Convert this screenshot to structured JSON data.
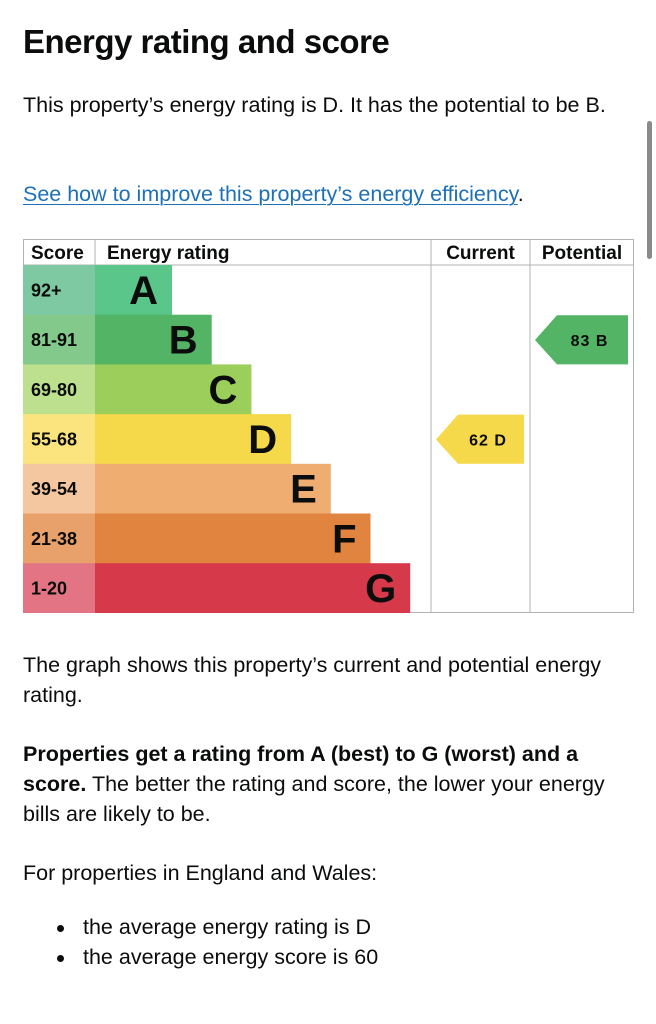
{
  "page": {
    "title": "Energy rating and score",
    "intro": "This property’s energy rating is D. It has the potential to be B.",
    "link_text": "See how to improve this property’s energy efficiency",
    "link_suffix": ".",
    "graph_description": "The graph shows this property’s current and potential energy rating.",
    "rating_range_bold": "Properties get a rating from A (best) to G (worst) and a score.",
    "rating_range_rest": " The better the rating and score, the lower your energy bills are likely to be.",
    "regional_intro": "For properties in England and Wales:",
    "averages": [
      "the average energy rating is D",
      "the average energy score is 60"
    ]
  },
  "chart_data": {
    "type": "bar",
    "headers": {
      "score": "Score",
      "rating": "Energy rating",
      "current": "Current",
      "potential": "Potential"
    },
    "bands": [
      {
        "letter": "A",
        "score": "92+",
        "color": "#5bc689",
        "score_bg": "#7ec9a2"
      },
      {
        "letter": "B",
        "score": "81-91",
        "color": "#54b465",
        "score_bg": "#83c98b"
      },
      {
        "letter": "C",
        "score": "69-80",
        "color": "#9bce5a",
        "score_bg": "#bde08f"
      },
      {
        "letter": "D",
        "score": "55-68",
        "color": "#f6d84b",
        "score_bg": "#fbe47d"
      },
      {
        "letter": "E",
        "score": "39-54",
        "color": "#efad72",
        "score_bg": "#f5c7a0"
      },
      {
        "letter": "F",
        "score": "21-38",
        "color": "#e0843f",
        "score_bg": "#e9a16b"
      },
      {
        "letter": "G",
        "score": "1-20",
        "color": "#d6394a",
        "score_bg": "#e27483"
      }
    ],
    "current": {
      "score": 62,
      "band": "D",
      "label": "62 D",
      "color": "#f6d84b"
    },
    "potential": {
      "score": 83,
      "band": "B",
      "label": "83 B",
      "color": "#54b465"
    }
  }
}
